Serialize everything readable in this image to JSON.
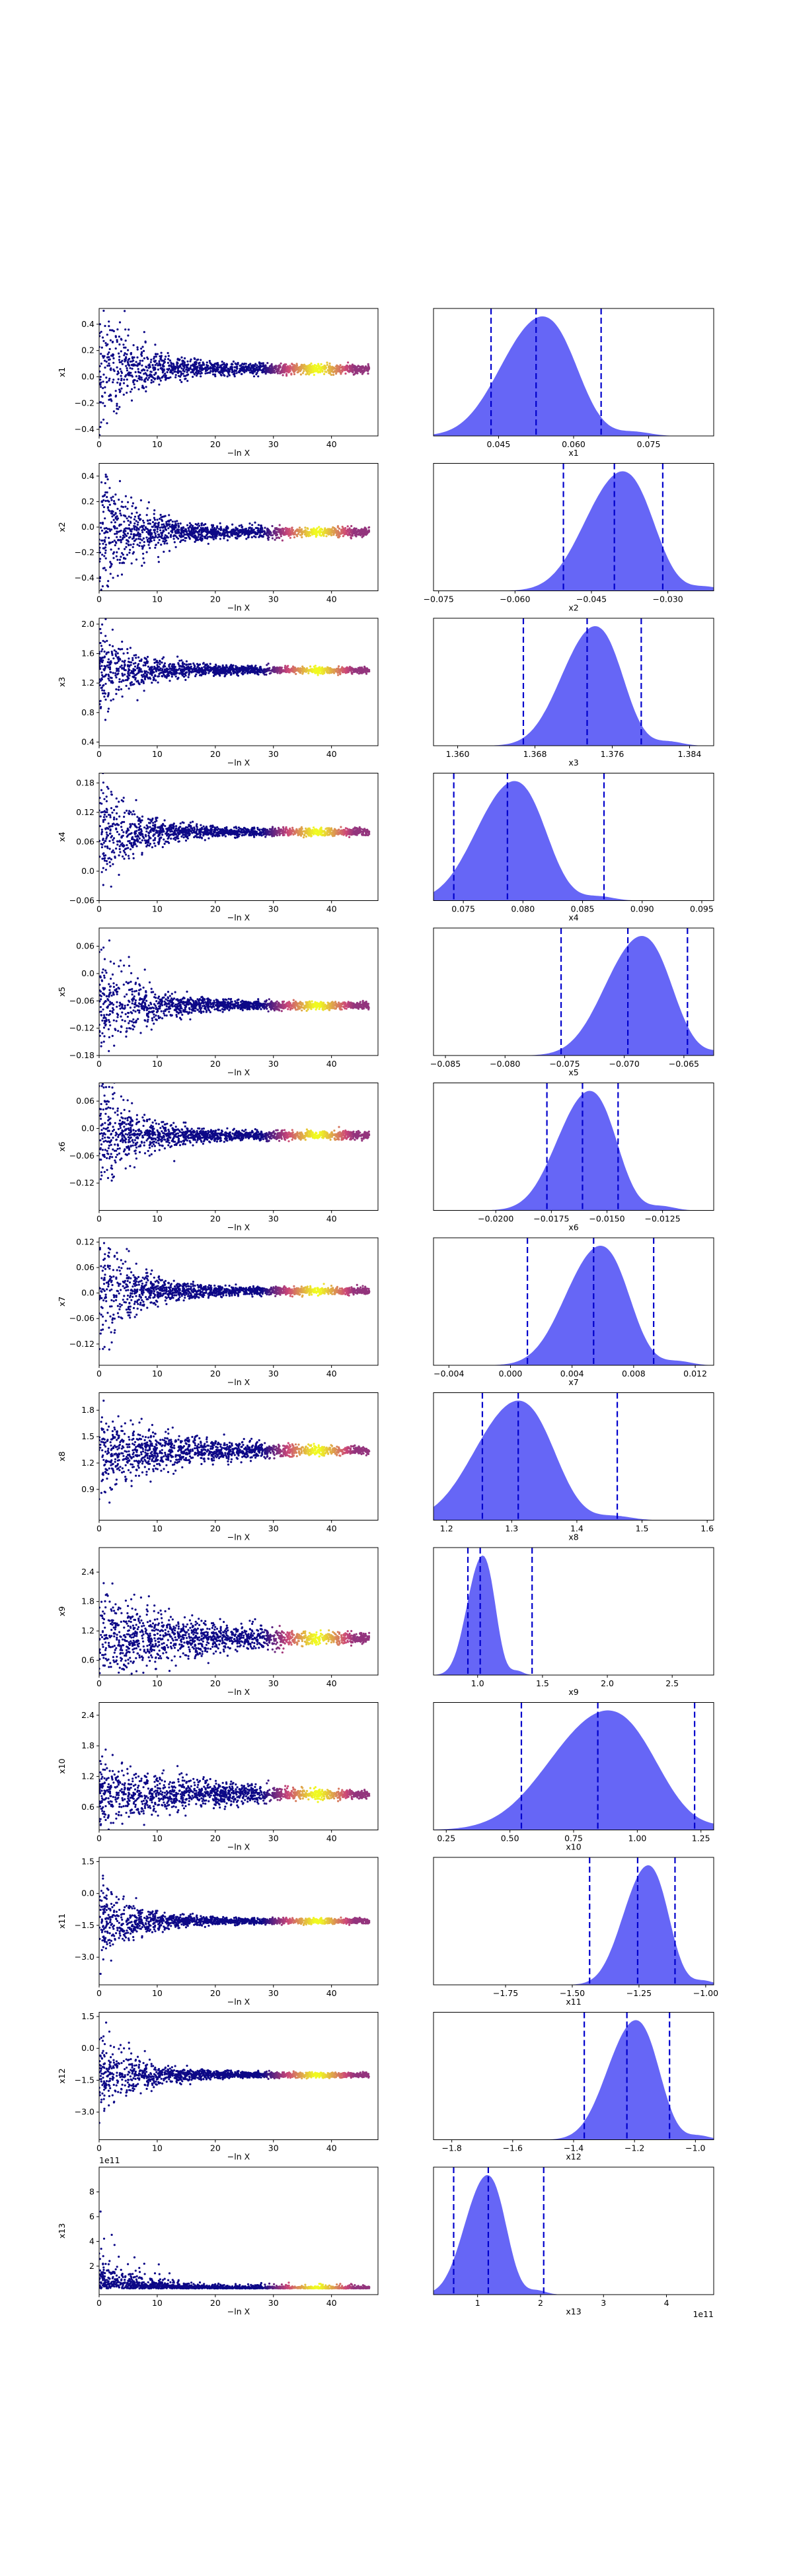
{
  "colors": {
    "trace_low": "#0d0887",
    "trace_mid": "#cc4778",
    "trace_high": "#f0f921",
    "posterior_fill": "#5555f5",
    "quantile_line": "#0000cc"
  },
  "trace_xlabel": "−ln X",
  "chart_data": [
    {
      "type": "scatter",
      "ylabel": "x1",
      "xlabel": "−ln X",
      "xlim": [
        0,
        48
      ],
      "xticks": [
        0,
        10,
        20,
        30,
        40
      ],
      "ylim": [
        -0.45,
        0.52
      ],
      "yticks": [
        -0.4,
        -0.2,
        0.0,
        0.2,
        0.4
      ],
      "converged": 0.06,
      "spread": 0.28,
      "sci": ""
    },
    {
      "type": "area",
      "xlabel": "x1",
      "xlim": [
        0.032,
        0.088
      ],
      "xticks": [
        0.045,
        0.06,
        0.075
      ],
      "xtick_labels": [
        "0.045",
        "0.060",
        "0.075"
      ],
      "mean": 0.0525,
      "sd": 0.0062,
      "quantiles": [
        0.0435,
        0.0525,
        0.0655
      ],
      "sci": ""
    },
    {
      "type": "scatter",
      "ylabel": "x2",
      "xlabel": "−ln X",
      "xlim": [
        0,
        48
      ],
      "xticks": [
        0,
        10,
        20,
        30,
        40
      ],
      "ylim": [
        -0.5,
        0.5
      ],
      "yticks": [
        -0.4,
        -0.2,
        0.0,
        0.2,
        0.4
      ],
      "converged": -0.04,
      "spread": 0.3,
      "sci": ""
    },
    {
      "type": "area",
      "xlabel": "x2",
      "xlim": [
        -0.076,
        -0.021
      ],
      "xticks": [
        -0.075,
        -0.06,
        -0.045,
        -0.03
      ],
      "xtick_labels": [
        "−0.075",
        "−0.060",
        "−0.045",
        "−0.030"
      ],
      "mean": -0.04,
      "sd": 0.0055,
      "quantiles": [
        -0.0505,
        -0.0405,
        -0.031
      ],
      "sci": ""
    },
    {
      "type": "scatter",
      "ylabel": "x3",
      "xlabel": "−ln X",
      "xlim": [
        0,
        48
      ],
      "xticks": [
        0,
        10,
        20,
        30,
        40
      ],
      "ylim": [
        0.35,
        2.08
      ],
      "yticks": [
        0.4,
        0.8,
        1.2,
        1.6,
        2.0
      ],
      "converged": 1.375,
      "spread": 0.35,
      "sci": ""
    },
    {
      "type": "area",
      "xlabel": "x3",
      "xlim": [
        1.3575,
        1.3865
      ],
      "xticks": [
        1.36,
        1.368,
        1.376,
        1.384
      ],
      "xtick_labels": [
        "1.360",
        "1.368",
        "1.376",
        "1.384"
      ],
      "mean": 1.3737,
      "sd": 0.0026,
      "quantiles": [
        1.3668,
        1.3734,
        1.379
      ],
      "sci": ""
    },
    {
      "type": "scatter",
      "ylabel": "x4",
      "xlabel": "−ln X",
      "xlim": [
        0,
        48
      ],
      "xticks": [
        0,
        10,
        20,
        30,
        40
      ],
      "ylim": [
        -0.06,
        0.2
      ],
      "yticks": [
        -0.06,
        0.0,
        0.06,
        0.12,
        0.18
      ],
      "converged": 0.08,
      "spread": 0.06,
      "sci": ""
    },
    {
      "type": "area",
      "xlabel": "x4",
      "xlim": [
        0.0725,
        0.096
      ],
      "xticks": [
        0.075,
        0.08,
        0.085,
        0.09,
        0.095
      ],
      "xtick_labels": [
        "0.075",
        "0.080",
        "0.085",
        "0.090",
        "0.095"
      ],
      "mean": 0.0788,
      "sd": 0.0024,
      "quantiles": [
        0.0742,
        0.0787,
        0.0868
      ],
      "sci": ""
    },
    {
      "type": "scatter",
      "ylabel": "x5",
      "xlabel": "−ln X",
      "xlim": [
        0,
        48
      ],
      "xticks": [
        0,
        10,
        20,
        30,
        40
      ],
      "ylim": [
        -0.18,
        0.1
      ],
      "yticks": [
        -0.18,
        -0.12,
        -0.06,
        0.0,
        0.06
      ],
      "converged": -0.07,
      "spread": 0.07,
      "sci": ""
    },
    {
      "type": "area",
      "xlabel": "x5",
      "xlim": [
        -0.086,
        -0.0625
      ],
      "xticks": [
        -0.085,
        -0.08,
        -0.075,
        -0.07,
        -0.065
      ],
      "xtick_labels": [
        "−0.085",
        "−0.080",
        "−0.075",
        "−0.070",
        "−0.065"
      ],
      "mean": -0.069,
      "sd": 0.0023,
      "quantiles": [
        -0.0753,
        -0.0697,
        -0.0647
      ],
      "sci": ""
    },
    {
      "type": "scatter",
      "ylabel": "x6",
      "xlabel": "−ln X",
      "xlim": [
        0,
        48
      ],
      "xticks": [
        0,
        10,
        20,
        30,
        40
      ],
      "ylim": [
        -0.18,
        0.1
      ],
      "yticks": [
        -0.12,
        -0.06,
        0.0,
        0.06
      ],
      "converged": -0.015,
      "spread": 0.07,
      "sci": ""
    },
    {
      "type": "area",
      "xlabel": "x6",
      "xlim": [
        -0.0228,
        -0.0102
      ],
      "xticks": [
        -0.02,
        -0.0175,
        -0.015,
        -0.0125
      ],
      "xtick_labels": [
        "−0.0200",
        "−0.0175",
        "−0.0150",
        "−0.0125"
      ],
      "mean": -0.016,
      "sd": 0.0011,
      "quantiles": [
        -0.0177,
        -0.0161,
        -0.0145
      ],
      "sci": ""
    },
    {
      "type": "scatter",
      "ylabel": "x7",
      "xlabel": "−ln X",
      "xlim": [
        0,
        48
      ],
      "xticks": [
        0,
        10,
        20,
        30,
        40
      ],
      "ylim": [
        -0.17,
        0.13
      ],
      "yticks": [
        -0.12,
        -0.06,
        0.0,
        0.06,
        0.12
      ],
      "converged": 0.005,
      "spread": 0.07,
      "sci": ""
    },
    {
      "type": "area",
      "xlabel": "x7",
      "xlim": [
        -0.005,
        0.0132
      ],
      "xticks": [
        -0.004,
        0.0,
        0.004,
        0.008,
        0.012
      ],
      "xtick_labels": [
        "−0.004",
        "0.000",
        "0.004",
        "0.008",
        "0.012"
      ],
      "mean": 0.0055,
      "sd": 0.0017,
      "quantiles": [
        0.0011,
        0.0054,
        0.0093
      ],
      "sci": ""
    },
    {
      "type": "scatter",
      "ylabel": "x8",
      "xlabel": "−ln X",
      "xlim": [
        0,
        48
      ],
      "xticks": [
        0,
        10,
        20,
        30,
        40
      ],
      "ylim": [
        0.55,
        2.0
      ],
      "yticks": [
        0.9,
        1.2,
        1.5,
        1.8
      ],
      "converged": 1.34,
      "spread": 0.22,
      "sci": ""
    },
    {
      "type": "area",
      "xlabel": "x8",
      "xlim": [
        1.18,
        1.61
      ],
      "xticks": [
        1.2,
        1.3,
        1.4,
        1.5,
        1.6
      ],
      "xtick_labels": [
        "1.2",
        "1.3",
        "1.4",
        "1.5",
        "1.6"
      ],
      "mean": 1.3,
      "sd": 0.05,
      "quantiles": [
        1.255,
        1.31,
        1.462
      ],
      "sci": ""
    },
    {
      "type": "scatter",
      "ylabel": "x9",
      "xlabel": "−ln X",
      "xlim": [
        0,
        48
      ],
      "xticks": [
        0,
        10,
        20,
        30,
        40
      ],
      "ylim": [
        0.3,
        2.9
      ],
      "yticks": [
        0.6,
        1.2,
        1.8,
        2.4
      ],
      "converged": 1.05,
      "spread": 0.55,
      "sci": ""
    },
    {
      "type": "area",
      "xlabel": "x9",
      "xlim": [
        0.66,
        2.82
      ],
      "xticks": [
        1.0,
        1.5,
        2.0,
        2.5
      ],
      "xtick_labels": [
        "1.0",
        "1.5",
        "2.0",
        "2.5"
      ],
      "mean": 1.02,
      "sd": 0.09,
      "quantiles": [
        0.925,
        1.02,
        1.42
      ],
      "sci": ""
    },
    {
      "type": "scatter",
      "ylabel": "x10",
      "xlabel": "−ln X",
      "xlim": [
        0,
        48
      ],
      "xticks": [
        0,
        10,
        20,
        30,
        40
      ],
      "ylim": [
        0.15,
        2.65
      ],
      "yticks": [
        0.6,
        1.2,
        1.8,
        2.4
      ],
      "converged": 0.85,
      "spread": 0.4,
      "sci": ""
    },
    {
      "type": "area",
      "xlabel": "x10",
      "xlim": [
        0.2,
        1.3
      ],
      "xticks": [
        0.25,
        0.5,
        0.75,
        1.0,
        1.25
      ],
      "xtick_labels": [
        "0.25",
        "0.50",
        "0.75",
        "1.00",
        "1.25"
      ],
      "mean": 0.85,
      "sd": 0.17,
      "quantiles": [
        0.545,
        0.845,
        1.225
      ],
      "sci": ""
    },
    {
      "type": "scatter",
      "ylabel": "x11",
      "xlabel": "−ln X",
      "xlim": [
        0,
        48
      ],
      "xticks": [
        0,
        10,
        20,
        30,
        40
      ],
      "ylim": [
        -4.3,
        1.7
      ],
      "yticks": [
        -3.0,
        -1.5,
        0.0,
        1.5
      ],
      "converged": -1.3,
      "spread": 1.0,
      "sci": ""
    },
    {
      "type": "area",
      "xlabel": "x11",
      "xlim": [
        -2.02,
        -0.97
      ],
      "xticks": [
        -1.75,
        -1.5,
        -1.25,
        -1.0
      ],
      "xtick_labels": [
        "−1.75",
        "−1.50",
        "−1.25",
        "−1.00"
      ],
      "mean": -1.23,
      "sd": 0.07,
      "quantiles": [
        -1.435,
        -1.255,
        -1.115
      ],
      "sci": ""
    },
    {
      "type": "scatter",
      "ylabel": "x12",
      "xlabel": "−ln X",
      "xlim": [
        0,
        48
      ],
      "xticks": [
        0,
        10,
        20,
        30,
        40
      ],
      "ylim": [
        -4.3,
        1.7
      ],
      "yticks": [
        -3.0,
        -1.5,
        0.0,
        1.5
      ],
      "converged": -1.25,
      "spread": 1.0,
      "sci": ""
    },
    {
      "type": "area",
      "xlabel": "x12",
      "xlim": [
        -1.86,
        -0.94
      ],
      "xticks": [
        -1.8,
        -1.6,
        -1.4,
        -1.2,
        -1.0
      ],
      "xtick_labels": [
        "−1.8",
        "−1.6",
        "−1.4",
        "−1.2",
        "−1.0"
      ],
      "mean": -1.21,
      "sd": 0.07,
      "quantiles": [
        -1.365,
        -1.225,
        -1.085
      ],
      "sci": ""
    },
    {
      "type": "scatter",
      "ylabel": "x13",
      "xlabel": "−ln X",
      "xlim": [
        0,
        48
      ],
      "xticks": [
        0,
        10,
        20,
        30,
        40
      ],
      "ylim": [
        -0.3,
        10.0
      ],
      "yticks": [
        2,
        4,
        6,
        8
      ],
      "converged": 1.3,
      "spread": 1.0,
      "sci": "1e11"
    },
    {
      "type": "area",
      "xlabel": "x13",
      "xlim": [
        0.3,
        4.75
      ],
      "xticks": [
        1,
        2,
        3,
        4
      ],
      "xtick_labels": [
        "1",
        "2",
        "3",
        "4"
      ],
      "mean": 1.1,
      "sd": 0.27,
      "quantiles": [
        0.62,
        1.17,
        2.05
      ],
      "sci": "1e11"
    }
  ]
}
